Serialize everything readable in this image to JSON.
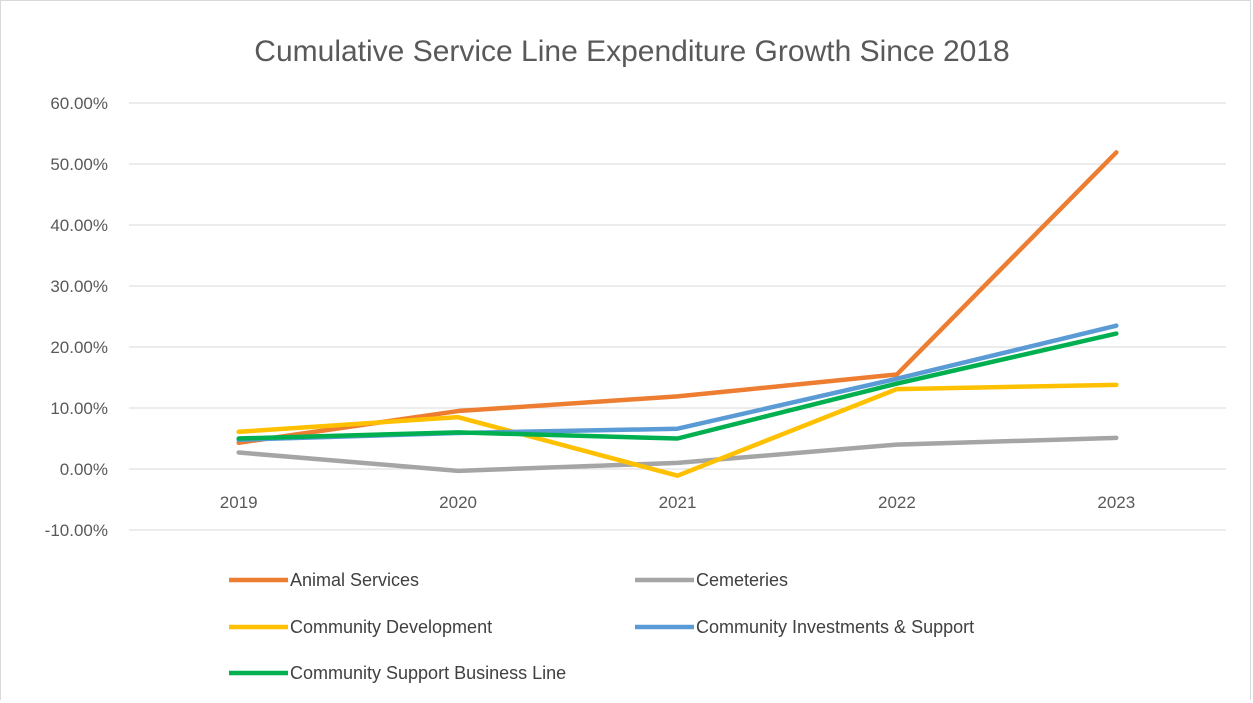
{
  "chart_data": {
    "type": "line",
    "title": "Cumulative Service Line Expenditure Growth Since 2018",
    "xlabel": "",
    "ylabel": "",
    "categories": [
      "2019",
      "2020",
      "2021",
      "2022",
      "2023"
    ],
    "ylim": [
      -10,
      60
    ],
    "ytick_step": 10,
    "ytick_labels": [
      "-10.00%",
      "0.00%",
      "10.00%",
      "20.00%",
      "30.00%",
      "40.00%",
      "50.00%",
      "60.00%"
    ],
    "grid": true,
    "legend_position": "bottom",
    "series": [
      {
        "name": "Animal Services",
        "color": "#ED7D31",
        "values": [
          4.3,
          9.5,
          11.9,
          15.5,
          51.9
        ]
      },
      {
        "name": "Cemeteries",
        "color": "#A5A5A5",
        "values": [
          2.7,
          -0.3,
          1.0,
          4.0,
          5.1
        ]
      },
      {
        "name": "Community Development",
        "color": "#FFC000",
        "values": [
          6.1,
          8.5,
          -1.1,
          13.1,
          13.8
        ]
      },
      {
        "name": "Community Investments & Support",
        "color": "#5B9BD5",
        "values": [
          4.8,
          5.9,
          6.6,
          14.8,
          23.5
        ]
      },
      {
        "name": "Community Support Business Line",
        "color": "#00B050",
        "values": [
          5.0,
          6.0,
          5.0,
          14.0,
          22.2
        ]
      }
    ]
  }
}
